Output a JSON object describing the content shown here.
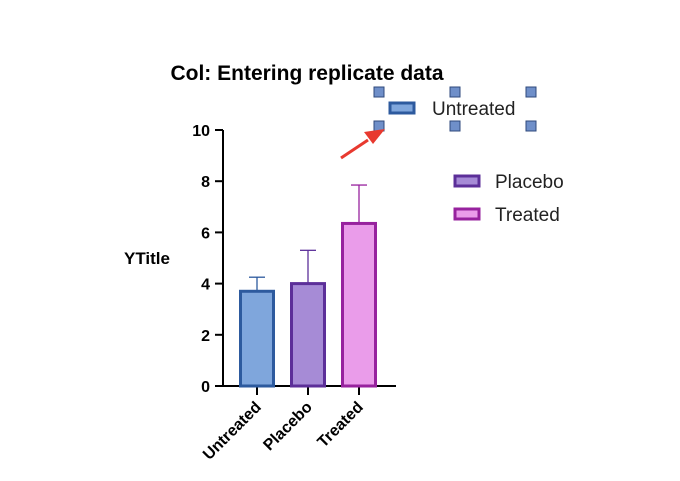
{
  "chart_data": {
    "type": "bar",
    "title": "Col: Entering replicate data",
    "ylabel": "YTitle",
    "xlabel": "",
    "ylim": [
      0,
      10
    ],
    "yticks": [
      0,
      2,
      4,
      6,
      8,
      10
    ],
    "categories": [
      "Untreated",
      "Placebo",
      "Treated"
    ],
    "values": [
      3.7,
      4.0,
      6.35
    ],
    "error_upper": [
      4.25,
      5.3,
      7.85
    ],
    "colors": {
      "fill": [
        "#7fa6dc",
        "#a68bd6",
        "#ea9cea"
      ],
      "stroke": [
        "#2d5a9e",
        "#5c2f99",
        "#97229e"
      ]
    },
    "legend": {
      "placement": "right",
      "entries": [
        "Untreated",
        "Placebo",
        "Treated"
      ],
      "selected": "Untreated"
    },
    "annotation_arrow_color": "#e8392f",
    "grid": false
  }
}
